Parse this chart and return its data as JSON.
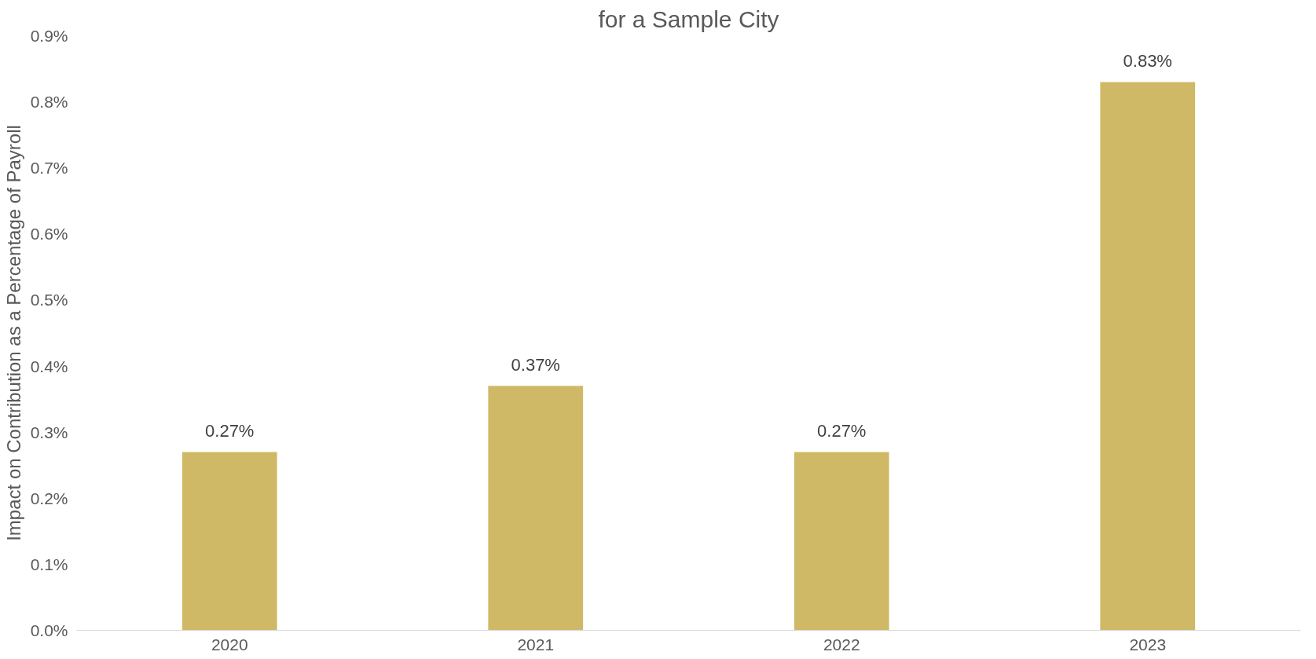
{
  "chart_data": {
    "type": "bar",
    "title": "for a Sample City",
    "ylabel": "Impact on Contribution as a Percentage of Payroll",
    "categories": [
      "2020",
      "2021",
      "2022",
      "2023"
    ],
    "values": [
      0.27,
      0.37,
      0.27,
      0.83
    ],
    "value_labels": [
      "0.27%",
      "0.37%",
      "0.27%",
      "0.83%"
    ],
    "color": "#cfb967",
    "ylim": [
      0,
      0.9
    ],
    "yticks": [
      {
        "value": 0,
        "label": "0.0%"
      },
      {
        "value": 0.1,
        "label": "0.1%"
      },
      {
        "value": 0.2,
        "label": "0.2%"
      },
      {
        "value": 0.3,
        "label": "0.3%"
      },
      {
        "value": 0.4,
        "label": "0.4%"
      },
      {
        "value": 0.5,
        "label": "0.5%"
      },
      {
        "value": 0.6,
        "label": "0.6%"
      },
      {
        "value": 0.7,
        "label": "0.7%"
      },
      {
        "value": 0.8,
        "label": "0.8%"
      },
      {
        "value": 0.9,
        "label": "0.9%"
      }
    ],
    "grid": false
  }
}
